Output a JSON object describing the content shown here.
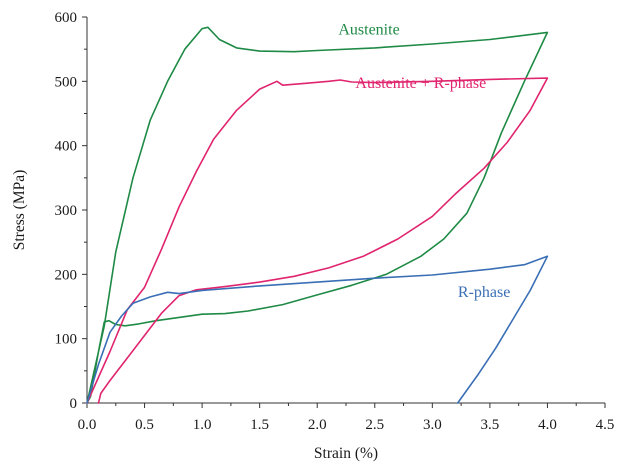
{
  "chart_data": {
    "type": "line",
    "title": "",
    "xlabel": "Strain (%)",
    "ylabel": "Stress (MPa)",
    "xlim": [
      0,
      4.5
    ],
    "ylim": [
      0,
      600
    ],
    "xticks": [
      "0.0",
      "0.5",
      "1.0",
      "1.5",
      "2.0",
      "2.5",
      "3.0",
      "3.5",
      "4.0",
      "4.5"
    ],
    "yticks": [
      "0",
      "100",
      "200",
      "300",
      "400",
      "500",
      "600"
    ],
    "grid": false,
    "legend": "none (inline curve labels)",
    "series": [
      {
        "name": "Austenite",
        "color": "#1e8a45",
        "points": [
          [
            0.0,
            0
          ],
          [
            0.15,
            120
          ],
          [
            0.25,
            235
          ],
          [
            0.4,
            350
          ],
          [
            0.55,
            440
          ],
          [
            0.7,
            500
          ],
          [
            0.85,
            550
          ],
          [
            1.0,
            582
          ],
          [
            1.05,
            584
          ],
          [
            1.15,
            565
          ],
          [
            1.3,
            552
          ],
          [
            1.5,
            547
          ],
          [
            1.8,
            546
          ],
          [
            2.0,
            548
          ],
          [
            2.5,
            552
          ],
          [
            3.0,
            558
          ],
          [
            3.5,
            565
          ],
          [
            4.0,
            576
          ],
          [
            3.8,
            500
          ],
          [
            3.6,
            420
          ],
          [
            3.45,
            350
          ],
          [
            3.3,
            295
          ],
          [
            3.1,
            255
          ],
          [
            2.9,
            228
          ],
          [
            2.6,
            200
          ],
          [
            2.3,
            183
          ],
          [
            2.0,
            168
          ],
          [
            1.7,
            153
          ],
          [
            1.4,
            143
          ],
          [
            1.2,
            139
          ],
          [
            1.0,
            138
          ],
          [
            0.8,
            133
          ],
          [
            0.6,
            128
          ],
          [
            0.45,
            123
          ],
          [
            0.33,
            120
          ],
          [
            0.25,
            122
          ],
          [
            0.19,
            128
          ],
          [
            0.15,
            126
          ],
          [
            0.1,
            80
          ],
          [
            0.06,
            40
          ],
          [
            0.03,
            10
          ],
          [
            0.0,
            0
          ]
        ]
      },
      {
        "name": "Austenite + R-phase",
        "color": "#e0246e",
        "points": [
          [
            0.0,
            0
          ],
          [
            0.2,
            80
          ],
          [
            0.35,
            145
          ],
          [
            0.5,
            180
          ],
          [
            0.65,
            240
          ],
          [
            0.8,
            305
          ],
          [
            0.95,
            360
          ],
          [
            1.1,
            410
          ],
          [
            1.3,
            455
          ],
          [
            1.5,
            488
          ],
          [
            1.65,
            500
          ],
          [
            1.7,
            494
          ],
          [
            1.9,
            497
          ],
          [
            2.1,
            500
          ],
          [
            2.2,
            502
          ],
          [
            2.3,
            499
          ],
          [
            2.5,
            498
          ],
          [
            3.0,
            500
          ],
          [
            3.5,
            503
          ],
          [
            4.0,
            505
          ],
          [
            3.85,
            455
          ],
          [
            3.65,
            405
          ],
          [
            3.45,
            365
          ],
          [
            3.2,
            325
          ],
          [
            3.0,
            290
          ],
          [
            2.7,
            255
          ],
          [
            2.4,
            228
          ],
          [
            2.1,
            210
          ],
          [
            1.8,
            197
          ],
          [
            1.5,
            188
          ],
          [
            1.2,
            181
          ],
          [
            0.95,
            176
          ],
          [
            0.8,
            167
          ],
          [
            0.65,
            140
          ],
          [
            0.5,
            105
          ],
          [
            0.35,
            70
          ],
          [
            0.2,
            35
          ],
          [
            0.12,
            15
          ],
          [
            0.1,
            0
          ]
        ]
      },
      {
        "name": "R-phase",
        "color": "#3a6fb5",
        "points": [
          [
            0.0,
            0
          ],
          [
            0.1,
            60
          ],
          [
            0.2,
            110
          ],
          [
            0.3,
            135
          ],
          [
            0.4,
            155
          ],
          [
            0.55,
            165
          ],
          [
            0.7,
            172
          ],
          [
            0.8,
            170
          ],
          [
            1.0,
            175
          ],
          [
            1.5,
            182
          ],
          [
            2.0,
            188
          ],
          [
            2.5,
            194
          ],
          [
            3.0,
            199
          ],
          [
            3.5,
            208
          ],
          [
            3.8,
            215
          ],
          [
            4.0,
            228
          ],
          [
            3.85,
            175
          ],
          [
            3.7,
            130
          ],
          [
            3.55,
            85
          ],
          [
            3.4,
            45
          ],
          [
            3.3,
            20
          ],
          [
            3.22,
            0
          ]
        ]
      }
    ],
    "annotations": [
      {
        "text": "Austenite",
        "series": 0,
        "x": 2.45,
        "y": 573
      },
      {
        "text": "Austenite + R-phase",
        "series": 1,
        "x": 2.9,
        "y": 490
      },
      {
        "text": "R-phase",
        "series": 2,
        "x": 3.45,
        "y": 165
      }
    ]
  }
}
